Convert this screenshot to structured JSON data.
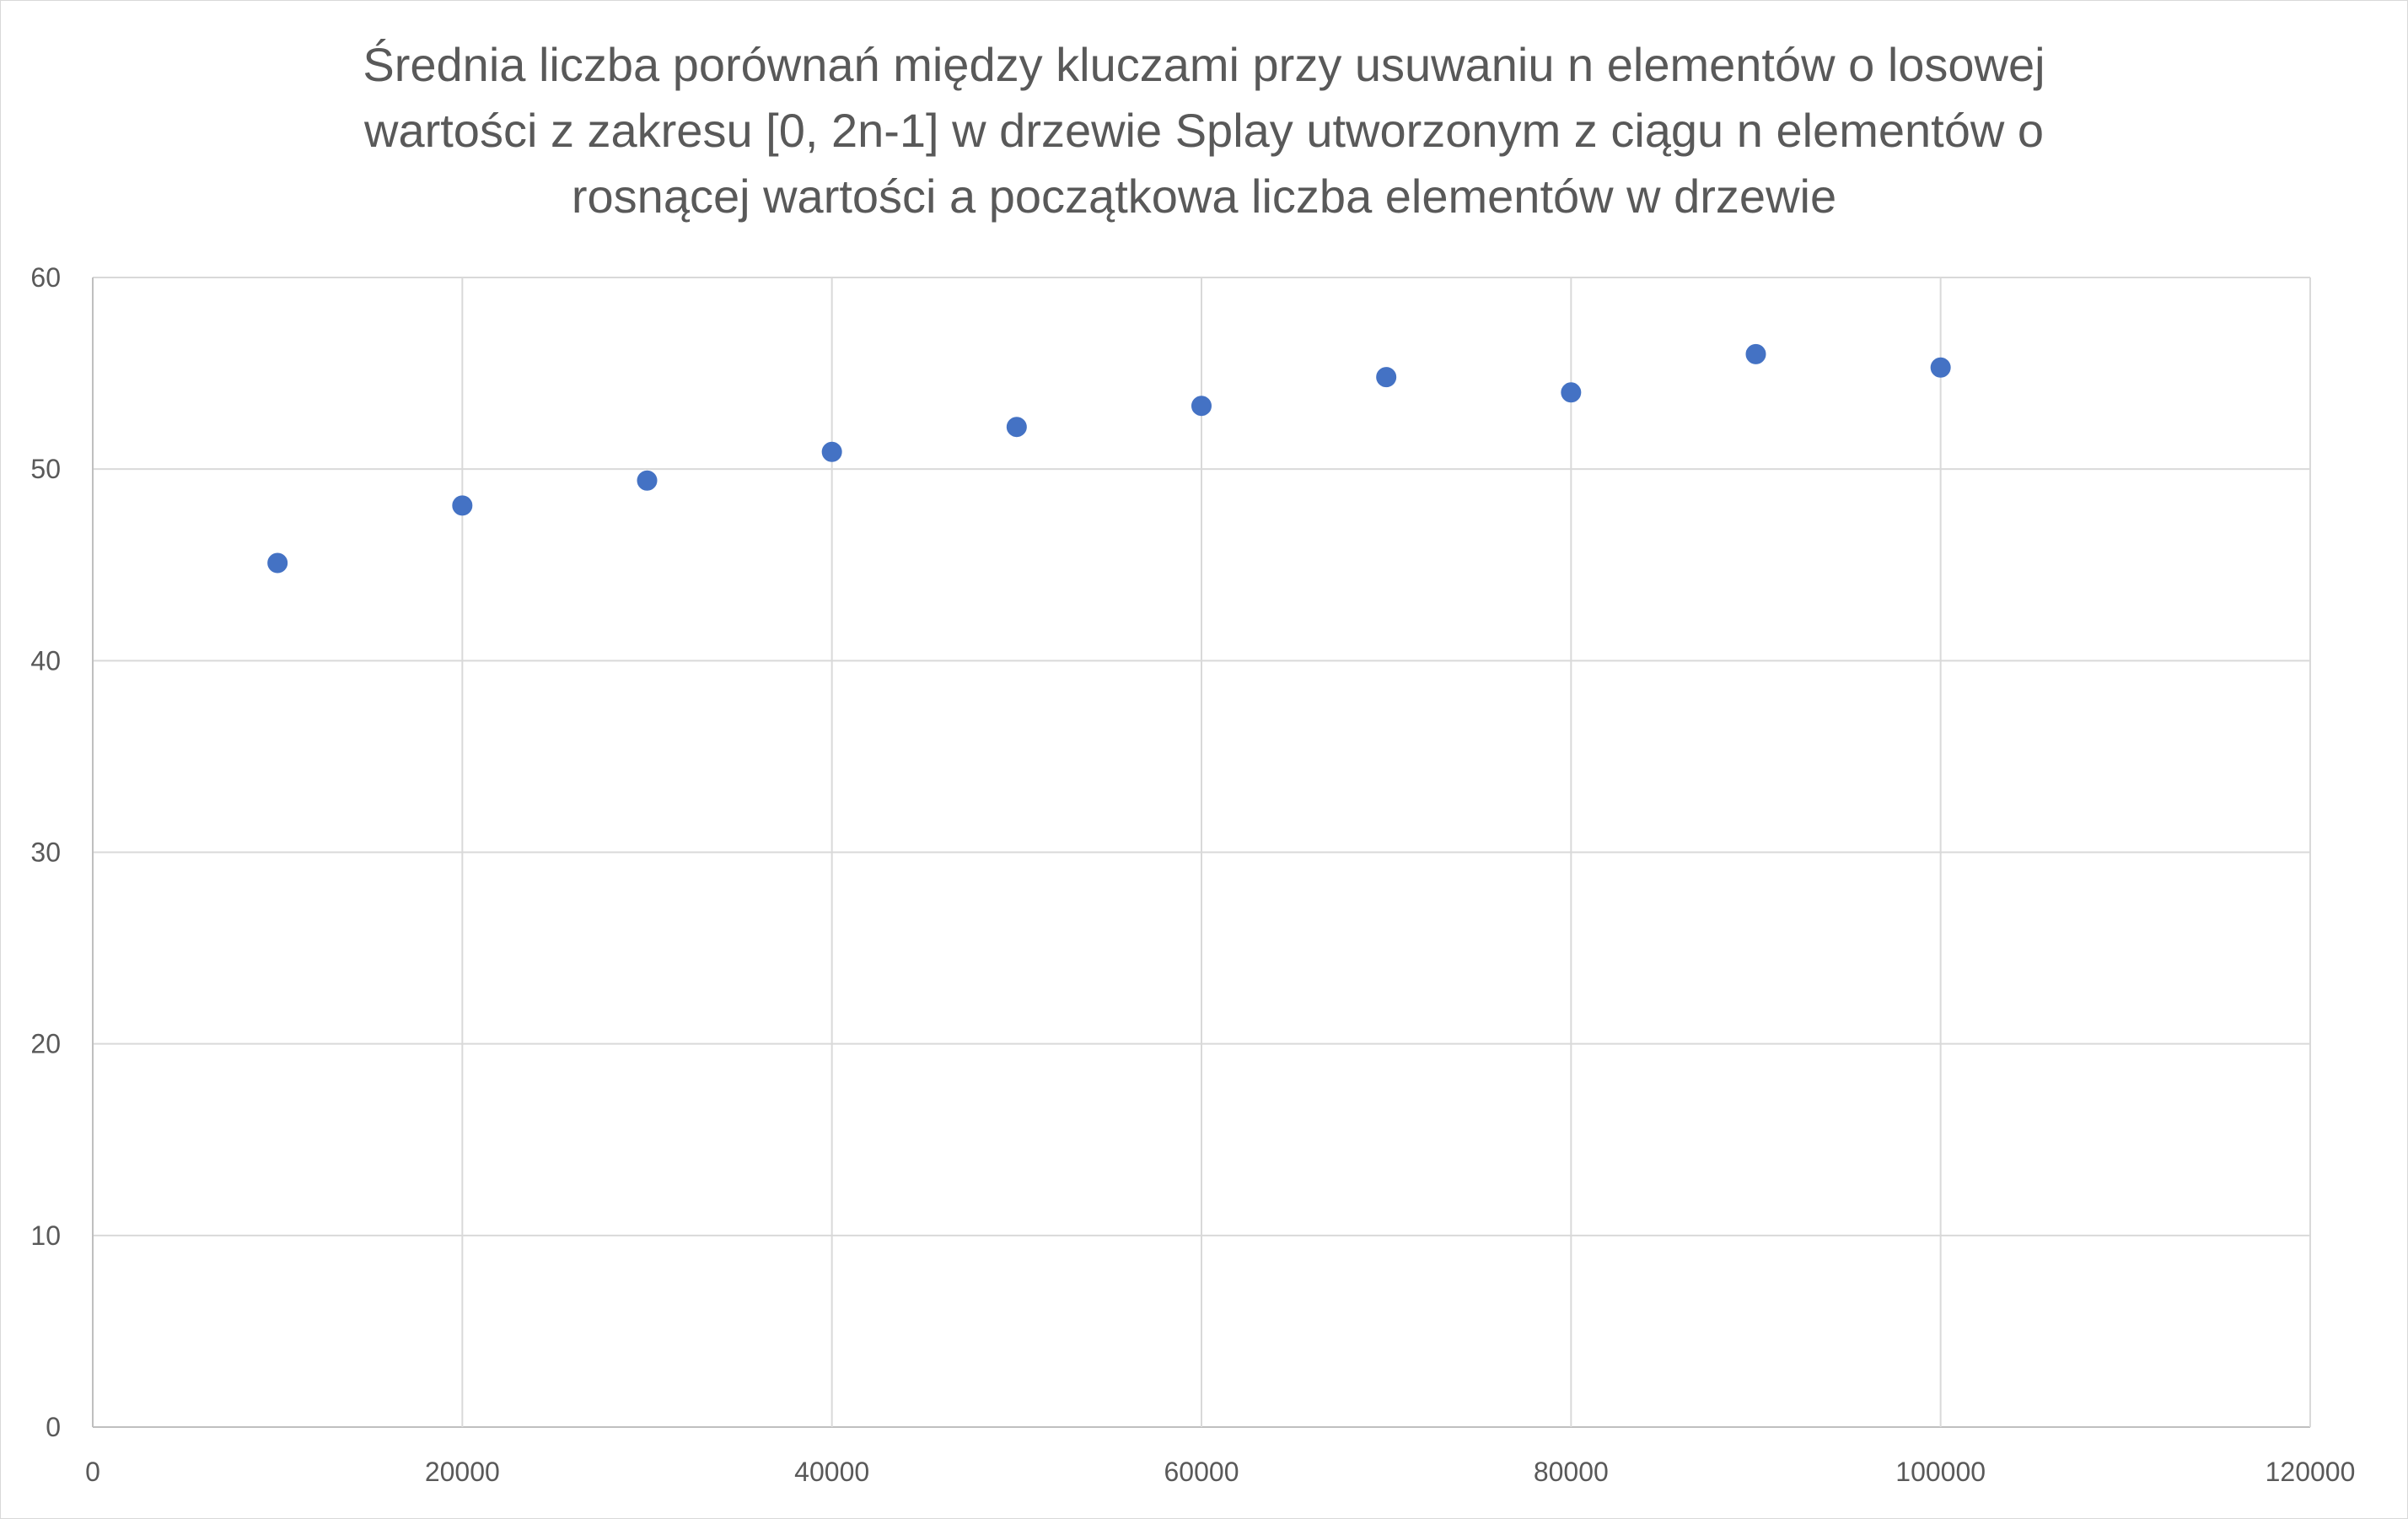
{
  "chart_data": {
    "type": "scatter",
    "title_lines": [
      "Średnia liczba porównań między kluczami przy usuwaniu n elementów o losowej",
      "wartości z zakresu [0, 2n-1] w drzewie Splay utworzonym z ciągu n elementów o",
      "rosnącej wartości a początkowa liczba elementów w drzewie"
    ],
    "xlabel": "",
    "ylabel": "",
    "xlim": [
      0,
      120000
    ],
    "ylim": [
      0,
      60
    ],
    "x_ticks": [
      "0",
      "20000",
      "40000",
      "60000",
      "80000",
      "100000",
      "120000"
    ],
    "y_ticks": [
      "0",
      "10",
      "20",
      "30",
      "40",
      "50",
      "60"
    ],
    "grid": true,
    "legend": "none",
    "series": [
      {
        "color": "#4472c4",
        "points": [
          {
            "x": 10000,
            "y": 45.1
          },
          {
            "x": 20000,
            "y": 48.1
          },
          {
            "x": 30000,
            "y": 49.4
          },
          {
            "x": 40000,
            "y": 50.9
          },
          {
            "x": 50000,
            "y": 52.2
          },
          {
            "x": 60000,
            "y": 53.3
          },
          {
            "x": 70000,
            "y": 54.8
          },
          {
            "x": 80000,
            "y": 54.0
          },
          {
            "x": 90000,
            "y": 56.0
          },
          {
            "x": 100000,
            "y": 55.3
          }
        ]
      }
    ]
  },
  "colors": {
    "gridline": "#d9d9d9",
    "axis_line": "#bfbfbf",
    "text": "#595959",
    "marker": "#4472c4"
  }
}
